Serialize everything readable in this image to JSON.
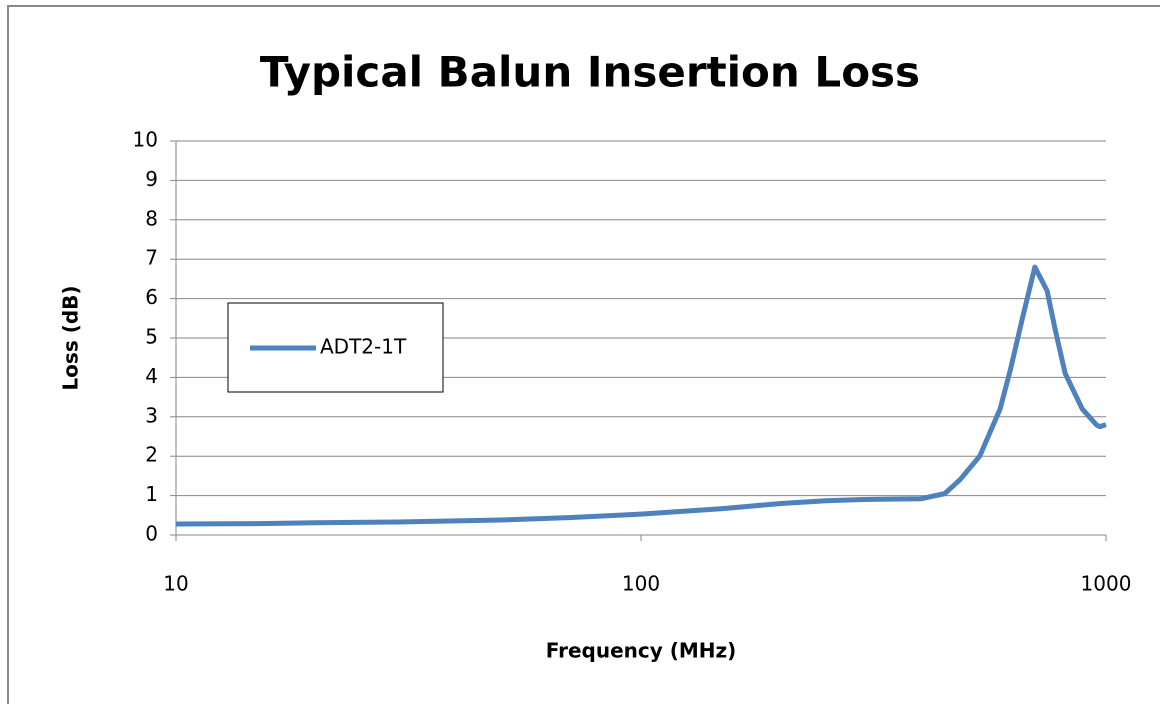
{
  "chart_data": {
    "type": "line",
    "title": "Typical Balun Insertion Loss",
    "x_label": "Frequency (MHz)",
    "y_label": "Loss (dB)",
    "x": [
      10,
      15,
      20,
      30,
      50,
      70,
      100,
      150,
      200,
      250,
      300,
      400,
      450,
      485,
      535,
      592,
      623,
      661,
      703,
      747,
      778,
      817,
      889,
      953,
      970,
      1000
    ],
    "series": [
      {
        "name": "ADT2-1T",
        "color": "#4f81bd",
        "values": [
          0.28,
          0.29,
          0.31,
          0.33,
          0.38,
          0.44,
          0.53,
          0.67,
          0.8,
          0.87,
          0.9,
          0.92,
          1.05,
          1.4,
          2.0,
          3.2,
          4.2,
          5.5,
          6.8,
          6.2,
          5.2,
          4.1,
          3.2,
          2.8,
          2.75,
          2.8
        ]
      }
    ],
    "xlim": [
      10,
      1000
    ],
    "xticks": [
      10,
      100,
      1000
    ],
    "log_x": true,
    "ylim": [
      0,
      10
    ],
    "yticks": [
      0,
      1,
      2,
      3,
      4,
      5,
      6,
      7,
      8,
      9,
      10
    ],
    "grid": true,
    "legend": "left"
  }
}
